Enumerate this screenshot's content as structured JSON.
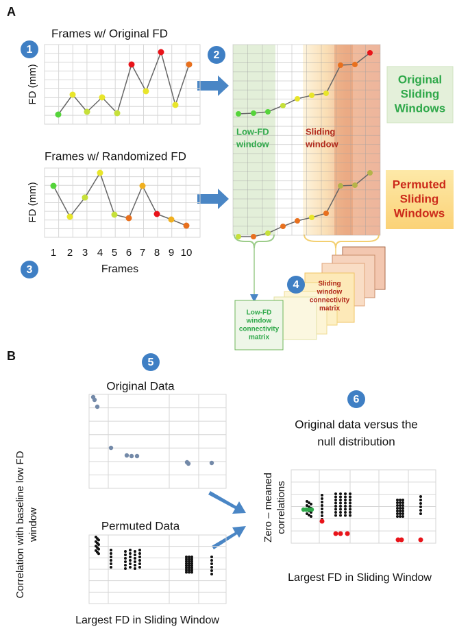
{
  "panel_labels": [
    "A",
    "B"
  ],
  "steps": [
    "1",
    "2",
    "3",
    "4",
    "5",
    "6"
  ],
  "panel_a": {
    "original_title": "Frames w/ Original FD",
    "randomized_title": "Frames w/ Randomized FD",
    "y_label": "FD (mm)",
    "frames": [
      "1",
      "2",
      "3",
      "4",
      "5",
      "6",
      "7",
      "8",
      "9",
      "10"
    ],
    "x_label": "Frames",
    "original_windows": [
      "Original",
      "Sliding",
      "Windows"
    ],
    "permuted_windows": [
      "Permuted",
      "Sliding",
      "Windows"
    ],
    "low_fd_window": [
      "Low-FD",
      "window"
    ],
    "sliding_window": [
      "Sliding",
      "window"
    ],
    "low_fd_matrix": [
      "Low-FD",
      "window",
      "connectivity",
      "matrix"
    ],
    "sliding_matrix": [
      "Sliding",
      "window",
      "connectivity",
      "matrix"
    ]
  },
  "panel_b": {
    "original_title": "Original Data",
    "permuted_title": "Permuted Data",
    "y_label": [
      "Correlation with baseline low FD",
      "window"
    ],
    "x_label": "Largest FD in Sliding Window",
    "null_title": [
      "Original data versus the",
      "null distribution"
    ],
    "null_y_label": [
      "Zero – meaned",
      "correlations"
    ]
  }
}
